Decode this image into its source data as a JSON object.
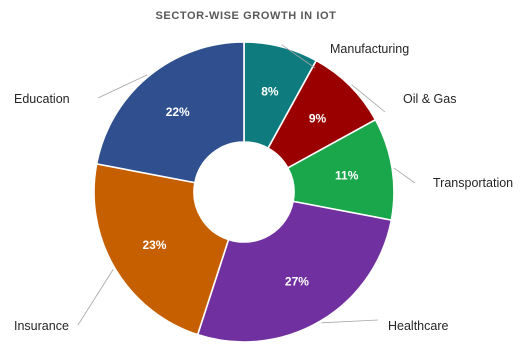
{
  "chart_data": {
    "type": "pie",
    "title": "SECTOR-WISE GROWTH IN IOT",
    "categories": [
      "Manufacturing",
      "Oil & Gas",
      "Transportation",
      "Healthcare",
      "Insurance",
      "Education"
    ],
    "values": [
      8,
      9,
      11,
      27,
      23,
      22
    ],
    "value_labels": [
      "8%",
      "9%",
      "11%",
      "27%",
      "23%",
      "22%"
    ],
    "colors": [
      "#0e7c7e",
      "#9a0000",
      "#1aa64a",
      "#7030a0",
      "#c65f00",
      "#2f4f8f"
    ],
    "donut": true,
    "start_angle_deg": 0,
    "direction": "clockwise"
  }
}
